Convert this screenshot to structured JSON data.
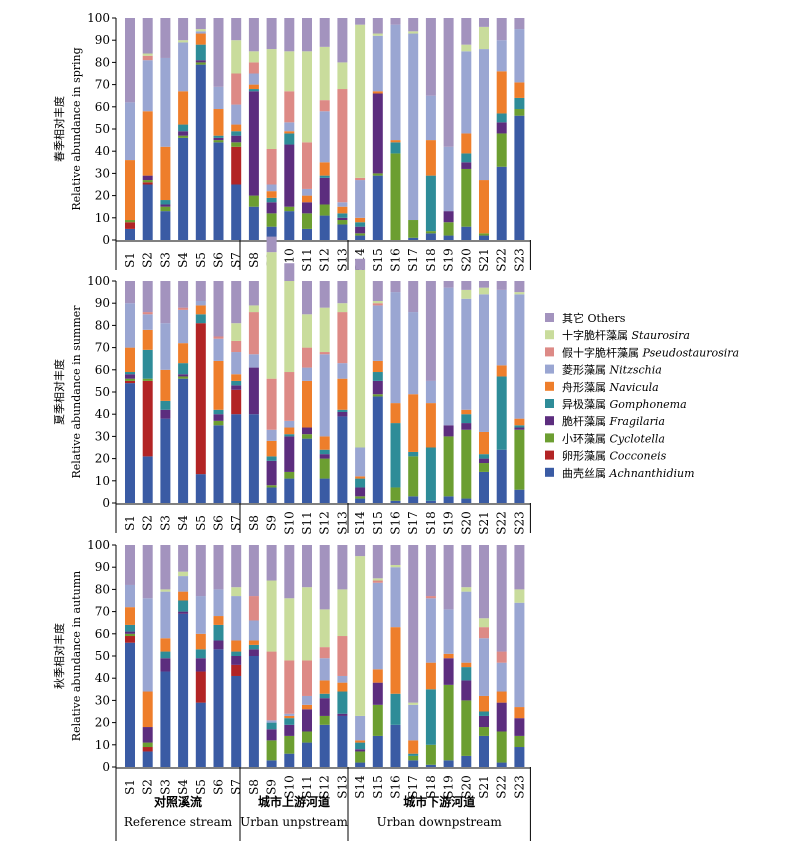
{
  "chart_data": {
    "type": "bar",
    "stacked": true,
    "ylim": [
      0,
      100
    ],
    "yticks": [
      "0",
      "10",
      "20",
      "30",
      "40",
      "50",
      "60",
      "70",
      "80",
      "90",
      "100"
    ],
    "categories": [
      "S1",
      "S2",
      "S3",
      "S4",
      "S5",
      "S6",
      "S7",
      "S8",
      "S9",
      "S10",
      "S11",
      "S12",
      "S13",
      "S14",
      "S15",
      "S16",
      "S17",
      "S18",
      "S19",
      "S20",
      "S21",
      "S22",
      "S23"
    ],
    "groups": [
      {
        "cn": "对照溪流",
        "en": "Reference stream",
        "from": 0,
        "to": 6
      },
      {
        "cn": "城市上游河道",
        "en": "Urban unpstream",
        "from": 7,
        "to": 12
      },
      {
        "cn": "城市下游河道",
        "en": "Urban downpstream",
        "from": 13,
        "to": 22
      }
    ],
    "series": [
      {
        "name_cn": "曲壳丝属",
        "name_en": "Achnanthidium",
        "color": "#3A5BA4"
      },
      {
        "name_cn": "卵形藻属",
        "name_en": "Cocconeis",
        "color": "#B22425"
      },
      {
        "name_cn": "小环藻属",
        "name_en": "Cyclotella",
        "color": "#6C9E31"
      },
      {
        "name_cn": "脆杆藻属",
        "name_en": "Fragilaria",
        "color": "#5C2D7E"
      },
      {
        "name_cn": "异极藻属",
        "name_en": "Gomphonema",
        "color": "#2E8C98"
      },
      {
        "name_cn": "舟形藻属",
        "name_en": "Navicula",
        "color": "#EE7E2B"
      },
      {
        "name_cn": "菱形藻属",
        "name_en": "Nitzschia",
        "color": "#9AA6D2"
      },
      {
        "name_cn": "假十字脆杆藻属",
        "name_en": "Pseudostaurosira",
        "color": "#DD8A86"
      },
      {
        "name_cn": "十字脆杆藻属",
        "name_en": "Staurosira",
        "color": "#C9DC9C"
      },
      {
        "name_cn": "其它",
        "name_en": "Others",
        "color": "#A393BE"
      }
    ],
    "panels": [
      {
        "ylabel_cn": "春季相对丰度",
        "ylabel_en": "Relative abundance in spring",
        "values": [
          [
            5,
            3,
            1,
            0,
            0,
            27,
            26,
            0,
            0,
            38
          ],
          [
            25,
            1,
            1,
            2,
            0,
            29,
            23,
            2,
            1,
            16
          ],
          [
            13,
            0,
            2,
            1,
            2,
            24,
            40,
            0,
            0,
            18
          ],
          [
            46,
            0,
            1,
            2,
            3,
            15,
            22,
            0,
            1,
            10
          ],
          [
            79,
            0,
            1,
            1,
            7,
            5,
            1,
            0,
            1,
            5
          ],
          [
            44,
            0,
            1,
            1,
            1,
            12,
            10,
            0,
            0,
            31
          ],
          [
            25,
            17,
            2,
            3,
            2,
            3,
            9,
            14,
            15,
            10
          ],
          [
            15,
            0,
            5,
            47,
            1,
            2,
            5,
            5,
            5,
            15
          ],
          [
            6,
            0,
            6,
            5,
            2,
            3,
            3,
            16,
            45,
            14
          ],
          [
            13,
            0,
            2,
            28,
            5,
            1,
            4,
            14,
            18,
            15
          ],
          [
            5,
            0,
            7,
            5,
            0,
            3,
            3,
            21,
            41,
            15
          ],
          [
            11,
            0,
            5,
            12,
            1,
            6,
            23,
            5,
            24,
            13
          ],
          [
            7,
            0,
            2,
            1,
            2,
            3,
            2,
            51,
            12,
            20
          ],
          [
            2,
            0,
            1,
            3,
            2,
            2,
            17,
            1,
            69,
            3
          ],
          [
            29,
            0,
            1,
            36,
            0,
            1,
            25,
            0,
            1,
            7
          ],
          [
            0,
            0,
            39,
            0,
            5,
            1,
            52,
            0,
            0,
            3
          ],
          [
            1,
            0,
            8,
            0,
            0,
            0,
            84,
            0,
            1,
            6
          ],
          [
            3,
            0,
            1,
            0,
            25,
            16,
            20,
            0,
            0,
            35
          ],
          [
            2,
            0,
            6,
            5,
            0,
            0,
            29,
            0,
            0,
            58
          ],
          [
            6,
            0,
            26,
            3,
            4,
            9,
            37,
            0,
            3,
            12
          ],
          [
            2,
            0,
            1,
            0,
            0,
            24,
            59,
            0,
            10,
            4
          ],
          [
            33,
            0,
            15,
            5,
            4,
            19,
            14,
            0,
            0,
            10
          ],
          [
            56,
            0,
            3,
            0,
            5,
            7,
            24,
            0,
            0,
            5
          ]
        ]
      },
      {
        "ylabel_cn": "夏季相对丰度",
        "ylabel_en": "Relative abundance in summer",
        "values": [
          [
            54,
            1,
            1,
            2,
            1,
            11,
            20,
            0,
            0,
            10
          ],
          [
            21,
            34,
            1,
            0,
            13,
            9,
            7,
            1,
            0,
            14
          ],
          [
            38,
            0,
            0,
            4,
            4,
            14,
            21,
            0,
            0,
            19
          ],
          [
            56,
            0,
            1,
            1,
            5,
            9,
            15,
            1,
            0,
            12
          ],
          [
            13,
            68,
            0,
            0,
            4,
            4,
            2,
            0,
            0,
            9
          ],
          [
            35,
            0,
            2,
            3,
            2,
            22,
            10,
            1,
            0,
            25
          ],
          [
            40,
            11,
            0,
            2,
            2,
            3,
            10,
            5,
            8,
            19
          ],
          [
            40,
            0,
            0,
            21,
            0,
            0,
            6,
            19,
            3,
            11
          ],
          [
            7,
            0,
            1,
            11,
            2,
            7,
            5,
            23,
            57,
            7
          ],
          [
            11,
            0,
            3,
            16,
            1,
            3,
            3,
            22,
            41,
            8
          ],
          [
            29,
            0,
            2,
            3,
            0,
            21,
            6,
            9,
            15,
            15
          ],
          [
            11,
            0,
            9,
            2,
            2,
            6,
            37,
            1,
            20,
            12
          ],
          [
            39,
            0,
            0,
            2,
            1,
            14,
            7,
            23,
            4,
            10
          ],
          [
            2,
            0,
            1,
            4,
            4,
            1,
            13,
            0,
            80,
            5
          ],
          [
            48,
            0,
            1,
            6,
            4,
            5,
            25,
            1,
            1,
            9
          ],
          [
            1,
            0,
            6,
            0,
            29,
            9,
            50,
            0,
            0,
            5
          ],
          [
            3,
            0,
            18,
            0,
            2,
            26,
            37,
            0,
            0,
            14
          ],
          [
            1,
            0,
            0,
            0,
            24,
            20,
            10,
            0,
            0,
            45
          ],
          [
            3,
            0,
            27,
            5,
            0,
            0,
            62,
            0,
            0,
            3
          ],
          [
            2,
            0,
            31,
            3,
            4,
            2,
            50,
            0,
            4,
            4
          ],
          [
            14,
            0,
            4,
            2,
            2,
            10,
            62,
            0,
            3,
            3
          ],
          [
            24,
            0,
            0,
            0,
            33,
            5,
            34,
            0,
            0,
            4
          ],
          [
            6,
            0,
            27,
            1,
            1,
            3,
            56,
            0,
            1,
            5
          ]
        ]
      },
      {
        "ylabel_cn": "秋季相对丰度",
        "ylabel_en": "Relative abundance in autumn",
        "values": [
          [
            56,
            3,
            1,
            1,
            3,
            8,
            10,
            0,
            0,
            18
          ],
          [
            7,
            2,
            2,
            7,
            0,
            16,
            42,
            0,
            0,
            24
          ],
          [
            43,
            0,
            0,
            6,
            3,
            6,
            21,
            0,
            1,
            20
          ],
          [
            69,
            0,
            0,
            1,
            5,
            4,
            7,
            0,
            2,
            12
          ],
          [
            29,
            14,
            0,
            6,
            4,
            7,
            17,
            0,
            0,
            23
          ],
          [
            53,
            0,
            0,
            4,
            7,
            4,
            12,
            0,
            0,
            20
          ],
          [
            41,
            5,
            0,
            4,
            2,
            5,
            20,
            0,
            4,
            19
          ],
          [
            50,
            0,
            0,
            3,
            2,
            2,
            9,
            11,
            0,
            23
          ],
          [
            3,
            0,
            9,
            5,
            3,
            0,
            1,
            31,
            32,
            16
          ],
          [
            6,
            0,
            8,
            5,
            3,
            1,
            1,
            24,
            28,
            24
          ],
          [
            11,
            0,
            5,
            10,
            0,
            2,
            4,
            16,
            33,
            19
          ],
          [
            19,
            0,
            4,
            8,
            2,
            6,
            10,
            5,
            17,
            29
          ],
          [
            23,
            0,
            0,
            1,
            10,
            4,
            3,
            18,
            21,
            20
          ],
          [
            2,
            0,
            5,
            1,
            3,
            1,
            11,
            0,
            72,
            5
          ],
          [
            14,
            0,
            14,
            10,
            0,
            6,
            39,
            1,
            1,
            15
          ],
          [
            19,
            0,
            0,
            0,
            14,
            30,
            27,
            0,
            1,
            9
          ],
          [
            3,
            0,
            2,
            0,
            1,
            6,
            16,
            0,
            1,
            71
          ],
          [
            1,
            0,
            9,
            0,
            25,
            12,
            29,
            1,
            0,
            23
          ],
          [
            3,
            0,
            34,
            12,
            0,
            2,
            20,
            0,
            0,
            29
          ],
          [
            5,
            0,
            25,
            9,
            6,
            2,
            32,
            0,
            2,
            19
          ],
          [
            14,
            0,
            4,
            5,
            2,
            7,
            26,
            5,
            4,
            33
          ],
          [
            2,
            0,
            14,
            13,
            0,
            5,
            13,
            5,
            0,
            48
          ],
          [
            9,
            0,
            5,
            8,
            0,
            5,
            47,
            0,
            6,
            20
          ]
        ]
      }
    ]
  }
}
